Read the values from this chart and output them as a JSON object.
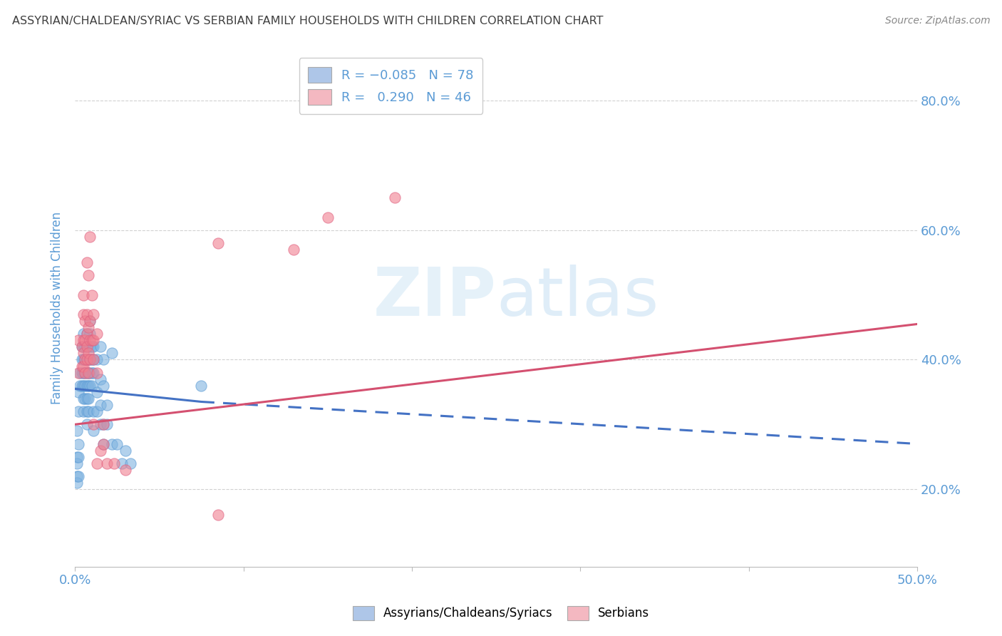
{
  "title": "ASSYRIAN/CHALDEAN/SYRIAC VS SERBIAN FAMILY HOUSEHOLDS WITH CHILDREN CORRELATION CHART",
  "source": "Source: ZipAtlas.com",
  "ylabel": "Family Households with Children",
  "xlim": [
    0.0,
    0.5
  ],
  "ylim": [
    0.08,
    0.88
  ],
  "ytick_values": [
    0.2,
    0.4,
    0.6,
    0.8
  ],
  "xtick_positions": [
    0.0,
    0.1,
    0.2,
    0.3,
    0.4,
    0.5
  ],
  "watermark_text": "ZIPatlas",
  "blue_scatter": [
    [
      0.002,
      0.32
    ],
    [
      0.002,
      0.35
    ],
    [
      0.003,
      0.38
    ],
    [
      0.003,
      0.36
    ],
    [
      0.004,
      0.42
    ],
    [
      0.004,
      0.4
    ],
    [
      0.004,
      0.38
    ],
    [
      0.004,
      0.36
    ],
    [
      0.005,
      0.44
    ],
    [
      0.005,
      0.42
    ],
    [
      0.005,
      0.4
    ],
    [
      0.005,
      0.38
    ],
    [
      0.005,
      0.36
    ],
    [
      0.005,
      0.34
    ],
    [
      0.005,
      0.32
    ],
    [
      0.006,
      0.42
    ],
    [
      0.006,
      0.4
    ],
    [
      0.006,
      0.38
    ],
    [
      0.006,
      0.36
    ],
    [
      0.006,
      0.34
    ],
    [
      0.007,
      0.44
    ],
    [
      0.007,
      0.42
    ],
    [
      0.007,
      0.4
    ],
    [
      0.007,
      0.38
    ],
    [
      0.007,
      0.36
    ],
    [
      0.007,
      0.34
    ],
    [
      0.007,
      0.32
    ],
    [
      0.007,
      0.3
    ],
    [
      0.008,
      0.42
    ],
    [
      0.008,
      0.4
    ],
    [
      0.008,
      0.38
    ],
    [
      0.008,
      0.36
    ],
    [
      0.008,
      0.34
    ],
    [
      0.008,
      0.32
    ],
    [
      0.009,
      0.46
    ],
    [
      0.009,
      0.44
    ],
    [
      0.009,
      0.42
    ],
    [
      0.009,
      0.4
    ],
    [
      0.009,
      0.38
    ],
    [
      0.009,
      0.36
    ],
    [
      0.01,
      0.42
    ],
    [
      0.01,
      0.4
    ],
    [
      0.01,
      0.38
    ],
    [
      0.01,
      0.36
    ],
    [
      0.011,
      0.42
    ],
    [
      0.011,
      0.4
    ],
    [
      0.011,
      0.38
    ],
    [
      0.011,
      0.32
    ],
    [
      0.011,
      0.29
    ],
    [
      0.013,
      0.4
    ],
    [
      0.013,
      0.35
    ],
    [
      0.013,
      0.32
    ],
    [
      0.015,
      0.42
    ],
    [
      0.015,
      0.37
    ],
    [
      0.015,
      0.33
    ],
    [
      0.015,
      0.3
    ],
    [
      0.017,
      0.4
    ],
    [
      0.017,
      0.36
    ],
    [
      0.017,
      0.3
    ],
    [
      0.017,
      0.27
    ],
    [
      0.019,
      0.33
    ],
    [
      0.019,
      0.3
    ],
    [
      0.022,
      0.41
    ],
    [
      0.022,
      0.27
    ],
    [
      0.025,
      0.27
    ],
    [
      0.028,
      0.24
    ],
    [
      0.03,
      0.26
    ],
    [
      0.033,
      0.24
    ],
    [
      0.001,
      0.25
    ],
    [
      0.001,
      0.24
    ],
    [
      0.001,
      0.22
    ],
    [
      0.001,
      0.21
    ],
    [
      0.001,
      0.29
    ],
    [
      0.002,
      0.27
    ],
    [
      0.002,
      0.22
    ],
    [
      0.002,
      0.25
    ],
    [
      0.075,
      0.36
    ]
  ],
  "pink_scatter": [
    [
      0.002,
      0.43
    ],
    [
      0.002,
      0.38
    ],
    [
      0.004,
      0.42
    ],
    [
      0.004,
      0.39
    ],
    [
      0.005,
      0.47
    ],
    [
      0.005,
      0.5
    ],
    [
      0.005,
      0.43
    ],
    [
      0.005,
      0.41
    ],
    [
      0.005,
      0.39
    ],
    [
      0.006,
      0.46
    ],
    [
      0.006,
      0.43
    ],
    [
      0.006,
      0.4
    ],
    [
      0.006,
      0.38
    ],
    [
      0.007,
      0.55
    ],
    [
      0.007,
      0.47
    ],
    [
      0.007,
      0.44
    ],
    [
      0.007,
      0.42
    ],
    [
      0.007,
      0.4
    ],
    [
      0.008,
      0.53
    ],
    [
      0.008,
      0.45
    ],
    [
      0.008,
      0.41
    ],
    [
      0.008,
      0.38
    ],
    [
      0.009,
      0.59
    ],
    [
      0.009,
      0.46
    ],
    [
      0.009,
      0.43
    ],
    [
      0.009,
      0.4
    ],
    [
      0.01,
      0.5
    ],
    [
      0.01,
      0.43
    ],
    [
      0.011,
      0.47
    ],
    [
      0.011,
      0.43
    ],
    [
      0.011,
      0.4
    ],
    [
      0.011,
      0.3
    ],
    [
      0.013,
      0.44
    ],
    [
      0.013,
      0.38
    ],
    [
      0.013,
      0.24
    ],
    [
      0.015,
      0.26
    ],
    [
      0.017,
      0.3
    ],
    [
      0.017,
      0.27
    ],
    [
      0.019,
      0.24
    ],
    [
      0.023,
      0.24
    ],
    [
      0.03,
      0.23
    ],
    [
      0.085,
      0.58
    ],
    [
      0.085,
      0.16
    ],
    [
      0.13,
      0.57
    ],
    [
      0.15,
      0.62
    ],
    [
      0.19,
      0.65
    ]
  ],
  "blue_line_solid": {
    "x0": 0.0,
    "y0": 0.355,
    "x1": 0.075,
    "y1": 0.335
  },
  "blue_line_dashed": {
    "x0": 0.075,
    "y0": 0.335,
    "x1": 0.5,
    "y1": 0.27
  },
  "pink_line": {
    "x0": 0.0,
    "y0": 0.3,
    "x1": 0.5,
    "y1": 0.455
  },
  "bg_color": "#ffffff",
  "grid_color": "#cccccc",
  "scatter_blue_color": "#7fb3e0",
  "scatter_pink_color": "#f08090",
  "scatter_blue_edge": "#5b9bd5",
  "scatter_pink_edge": "#e06080",
  "line_blue_color": "#4472c4",
  "line_pink_color": "#d45070",
  "title_color": "#404040",
  "axis_label_color": "#5b9bd5",
  "source_color": "#888888",
  "legend_blue_face": "#aec6e8",
  "legend_pink_face": "#f4b8c1",
  "legend_text_color": "#5b9bd5"
}
